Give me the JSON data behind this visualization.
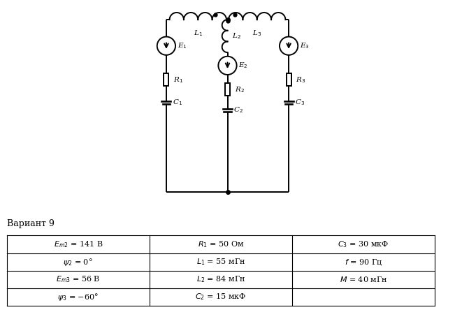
{
  "variant_text": "Вариант 9",
  "line_color": "#000000",
  "bg_color": "#ffffff",
  "table_data": [
    [
      "$E_{m2}$ = 141 В",
      "$R_1$ = 50 Ом",
      "$C_3$ = 30 мкФ"
    ],
    [
      "$\\psi_2$ = 0°",
      "$L_1$ = 55 мГн",
      "$f$ = 90 Гц"
    ],
    [
      "$E_{m3}$ = 56 В",
      "$L_2$ = 84 мГн",
      "$M$ = 40 мГн"
    ],
    [
      "$\\psi_3$ = −60°",
      "$C_2$ = 15 мкФ",
      ""
    ]
  ]
}
